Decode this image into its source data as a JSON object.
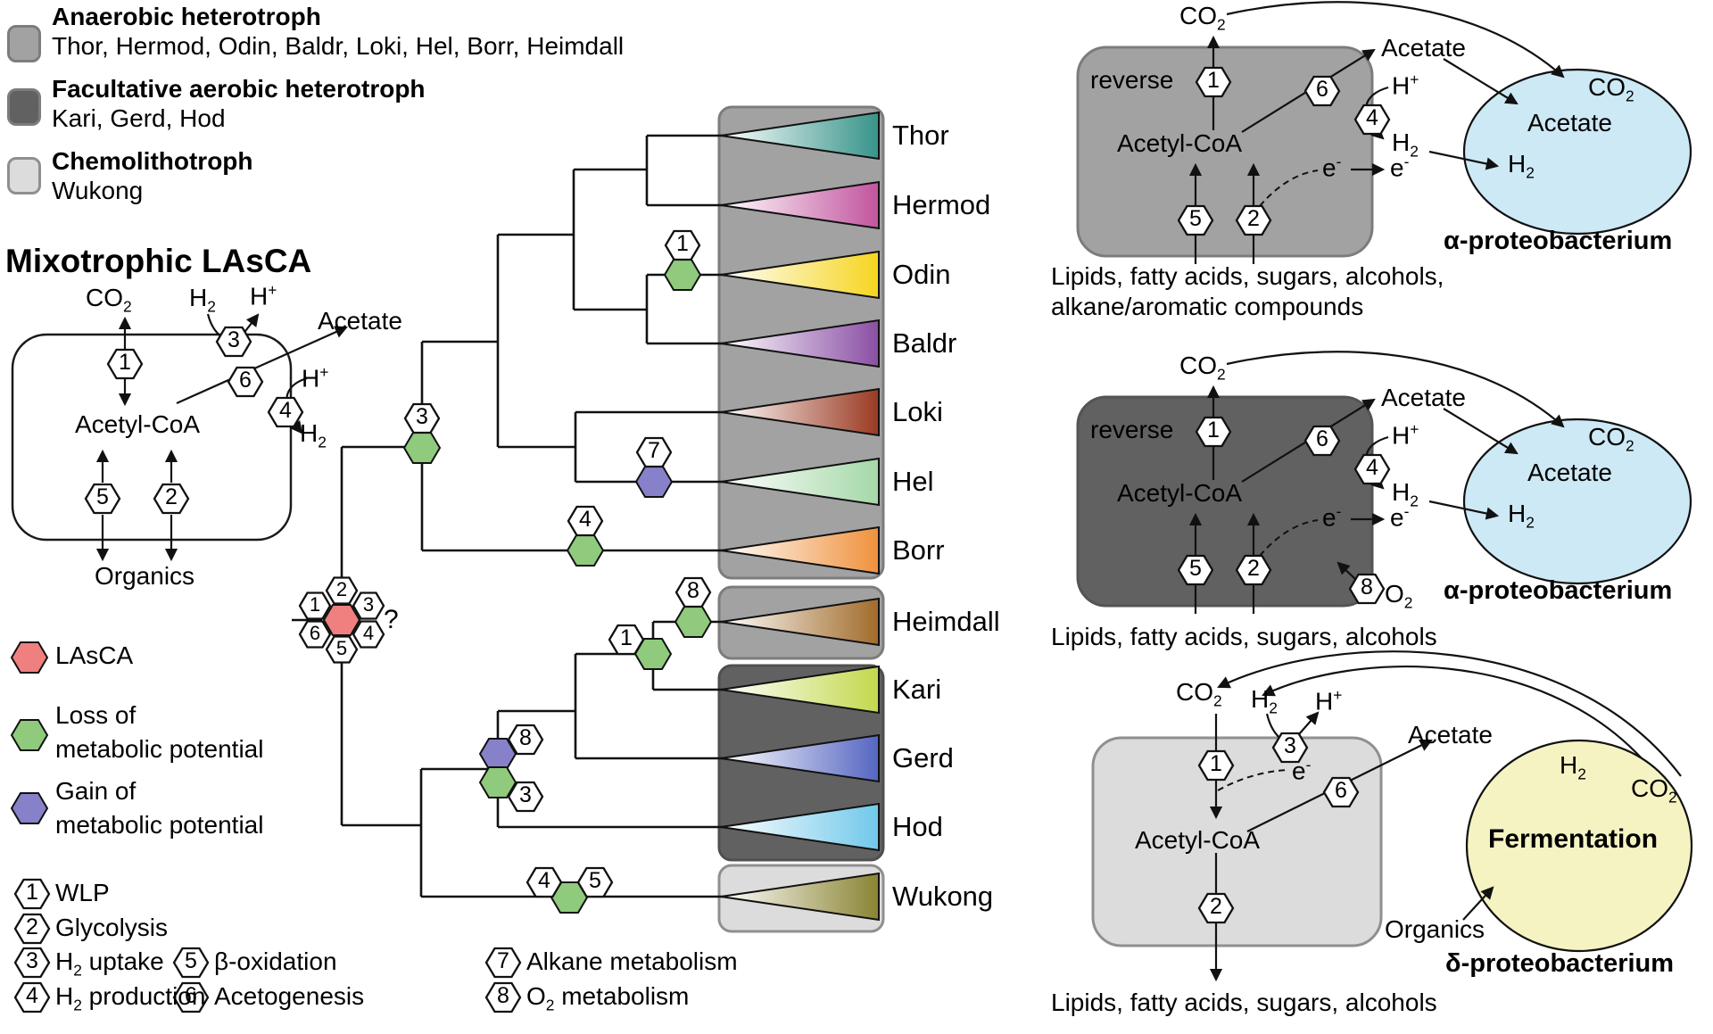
{
  "palette": {
    "gray": "#a2a2a2",
    "dark_gray": "#616161",
    "light_gray": "#dcdcdc",
    "loss_green": "#8fca7d",
    "gain_purple": "#8781c9",
    "lasca_red": "#f08080",
    "blue_cell": "#cde9f5",
    "yellow_cell": "#f6f3c3"
  },
  "group_legend": [
    {
      "title": "Anaerobic heterotroph",
      "members": "Thor, Hermod, Odin, Baldr, Loki, Hel, Borr, Heimdall"
    },
    {
      "title": "Facultative aerobic heterotroph",
      "members": "Kari, Gerd, Hod"
    },
    {
      "title": "Chemolithotroph",
      "members": "Wukong"
    }
  ],
  "lasca": {
    "title": "Mixotrophic LAsCA",
    "co2": "CO_2_",
    "h2": "H_2_",
    "h_plus": "H^+^",
    "acetate": "Acetate",
    "acetyl": "Acetyl-CoA",
    "h_plus_r": "H^+^",
    "h2_r": "H_2_",
    "organics": "Organics",
    "hexes": [
      "1",
      "3",
      "6",
      "4",
      "5",
      "2"
    ]
  },
  "marker_legend": {
    "lasca": "LAsCA",
    "loss_1": "Loss of",
    "loss_2": "metabolic potential",
    "gain_1": "Gain of",
    "gain_2": "metabolic potential"
  },
  "pathway_legend": [
    {
      "num": "1",
      "label": "WLP"
    },
    {
      "num": "2",
      "label": "Glycolysis"
    },
    {
      "num": "3",
      "label": "H_2_ uptake"
    },
    {
      "num": "4",
      "label": "H_2_ production"
    },
    {
      "num": "5",
      "label": "β-oxidation"
    },
    {
      "num": "6",
      "label": "Acetogenesis"
    },
    {
      "num": "7",
      "label": "Alkane metabolism"
    },
    {
      "num": "8",
      "label": "O_2_ metabolism"
    }
  ],
  "tree": {
    "leaves": [
      {
        "name": "Thor",
        "color": "#37948a"
      },
      {
        "name": "Hermod",
        "color": "#c2549e"
      },
      {
        "name": "Odin",
        "color": "#f6d51f"
      },
      {
        "name": "Baldr",
        "color": "#8a4fa3"
      },
      {
        "name": "Loki",
        "color": "#9a3a22"
      },
      {
        "name": "Hel",
        "color": "#a5d8a8"
      },
      {
        "name": "Borr",
        "color": "#f0913c"
      },
      {
        "name": "Heimdall",
        "color": "#a16b2a"
      },
      {
        "name": "Kari",
        "color": "#c3d84d"
      },
      {
        "name": "Gerd",
        "color": "#5566c1"
      },
      {
        "name": "Hod",
        "color": "#70c8ea"
      },
      {
        "name": "Wukong",
        "color": "#8a8433"
      }
    ],
    "marks": [
      {
        "kind": "loss",
        "labels": [
          "3"
        ]
      },
      {
        "kind": "loss",
        "labels": [
          "1"
        ]
      },
      {
        "kind": "gain",
        "labels": [
          "7"
        ]
      },
      {
        "kind": "loss",
        "labels": [
          "4"
        ]
      },
      {
        "kind": "loss",
        "labels": [
          "8"
        ]
      },
      {
        "kind": "loss",
        "labels": [
          "1"
        ]
      },
      {
        "kind": "gain",
        "labels": [
          "8"
        ]
      },
      {
        "kind": "loss",
        "labels": [
          "3"
        ]
      },
      {
        "kind": "loss",
        "labels": [
          "4",
          "5"
        ]
      }
    ],
    "flower": {
      "petals": [
        "1",
        "2",
        "3",
        "6",
        "4",
        "5"
      ]
    },
    "root_question": "?"
  },
  "diagrams": {
    "alpha1": {
      "co2": "CO_2_",
      "reverse": "reverse",
      "acetyl": "Acetyl-CoA",
      "acetate": "Acetate",
      "h_plus": "H^+^",
      "h2": "H_2_",
      "e_in": "e^-^",
      "e_out": "e^-^",
      "hexes": [
        "1",
        "6",
        "4",
        "5",
        "2"
      ],
      "cell": {
        "co2": "CO_2_",
        "acetate": "Acetate",
        "h2": "H_2_"
      },
      "caption": "α-proteobacterium",
      "feed": [
        "Lipids, fatty acids, sugars, alcohols,",
        "alkane/aromatic compounds"
      ]
    },
    "alpha2": {
      "co2": "CO_2_",
      "reverse": "reverse",
      "acetyl": "Acetyl-CoA",
      "acetate": "Acetate",
      "h_plus": "H^+^",
      "h2": "H_2_",
      "e_in": "e^-^",
      "e_out": "e^-^",
      "o2": "O_2_",
      "hexes": [
        "1",
        "6",
        "4",
        "5",
        "2",
        "8"
      ],
      "cell": {
        "co2": "CO_2_",
        "acetate": "Acetate",
        "h2": "H_2_"
      },
      "caption": "α-proteobacterium",
      "feed": [
        "Lipids, fatty acids, sugars, alcohols"
      ]
    },
    "delta": {
      "co2": "CO_2_",
      "h2": "H_2_",
      "h_plus": "H^+^",
      "acetate": "Acetate",
      "e": "e^-^",
      "acetyl": "Acetyl-CoA",
      "organics": "Organics",
      "hexes": [
        "3",
        "1",
        "6",
        "2"
      ],
      "cell": {
        "h2": "H_2_",
        "co2": "CO_2_",
        "fermentation": "Fermentation"
      },
      "caption": "δ-proteobacterium",
      "feed": [
        "Lipids, fatty acids, sugars, alcohols"
      ]
    }
  }
}
